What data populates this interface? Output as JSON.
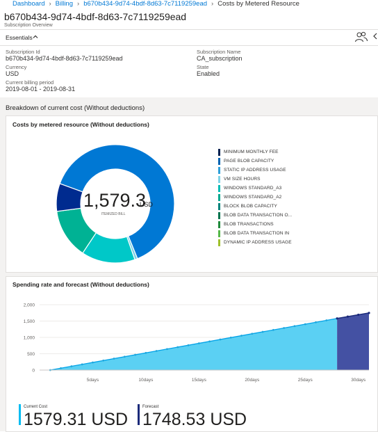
{
  "breadcrumb": {
    "items": [
      "Dashboard",
      "Billing",
      "b670b434-9d74-4bdf-8d63-7c7119259ead"
    ],
    "current": "Costs by Metered Resource"
  },
  "header": {
    "title": "b670b434-9d74-4bdf-8d63-7c7119259ead",
    "subtitle": "Subscription Overview"
  },
  "essentials": {
    "label": "Essentials",
    "subscription_id_label": "Subscription Id",
    "subscription_id": "b670b434-9d74-4bdf-8d63-7c7119259ead",
    "currency_label": "Currency",
    "currency": "USD",
    "billing_period_label": "Current billing period",
    "billing_period": "2019-08-01 - 2019-08-31",
    "subscription_name_label": "Subscription Name",
    "subscription_name": "CA_subscription",
    "state_label": "State",
    "state": "Enabled"
  },
  "breakdown": {
    "title": "Breakdown of current cost (Without deductions)"
  },
  "donut_card": {
    "title": "Costs by metered resource (Without deductions)",
    "center_value": "1,579.3",
    "center_unit": "USD",
    "center_label": "ITEMIZED BILL",
    "legend": [
      {
        "label": "MINIMUM MONTHLY FEE",
        "color": "#002050"
      },
      {
        "label": "PAGE BLOB CAPACITY",
        "color": "#0063b1"
      },
      {
        "label": "STATIC IP ADDRESS USAGE",
        "color": "#2d9fd9"
      },
      {
        "label": "VM SIZE HOURS",
        "color": "#7fd3e6"
      },
      {
        "label": "WINDOWS STANDARD_A3",
        "color": "#00bcb4"
      },
      {
        "label": "WINDOWS STANDARD_A2",
        "color": "#00a88f"
      },
      {
        "label": "BLOCK BLOB CAPACITY",
        "color": "#00827a"
      },
      {
        "label": "BLOB DATA TRANSACTION O...",
        "color": "#00734d"
      },
      {
        "label": "BLOB TRANSACTIONS",
        "color": "#1f8a3b"
      },
      {
        "label": "BLOB DATA TRANSACTION IN",
        "color": "#55b848"
      },
      {
        "label": "DYNAMIC IP ADDRESS USAGE",
        "color": "#9fc02a"
      }
    ]
  },
  "forecast_card": {
    "title": "Spending rate and forecast (Without deductions)",
    "current_cost_label": "Current Cost",
    "current_cost": "1579.31 USD",
    "forecast_label": "Forecast",
    "forecast": "1748.53 USD"
  },
  "chart_data": [
    {
      "type": "pie",
      "title": "Costs by metered resource (Without deductions)",
      "categories": [
        "PAGE BLOB CAPACITY",
        "VM SIZE HOURS",
        "WINDOWS STANDARD_A3",
        "WINDOWS STANDARD_A2",
        "MINIMUM MONTHLY FEE"
      ],
      "values": [
        1000,
        12,
        232,
        215,
        120
      ],
      "colors": [
        "#0078d4",
        "#7fd3e6",
        "#00c8c8",
        "#00b294",
        "#002b8f"
      ]
    },
    {
      "type": "area",
      "title": "Spending rate and forecast (Without deductions)",
      "x_tick_labels": [
        "5days",
        "10days",
        "15days",
        "20days",
        "25days",
        "30days"
      ],
      "x_tick_values": [
        5,
        10,
        15,
        20,
        25,
        30
      ],
      "y_tick_labels": [
        "0",
        "500",
        "1,000",
        "1,500",
        "2,000"
      ],
      "ylim": [
        0,
        2000
      ],
      "xlim": [
        0,
        31
      ],
      "series": [
        {
          "x": [
            1,
            28
          ],
          "y": [
            0,
            1579.31
          ],
          "color": "#4cc9f0"
        },
        {
          "x": [
            28,
            29,
            30,
            31
          ],
          "y": [
            1579.31,
            1636,
            1692,
            1748.53
          ],
          "color": "#33419d"
        }
      ]
    }
  ]
}
